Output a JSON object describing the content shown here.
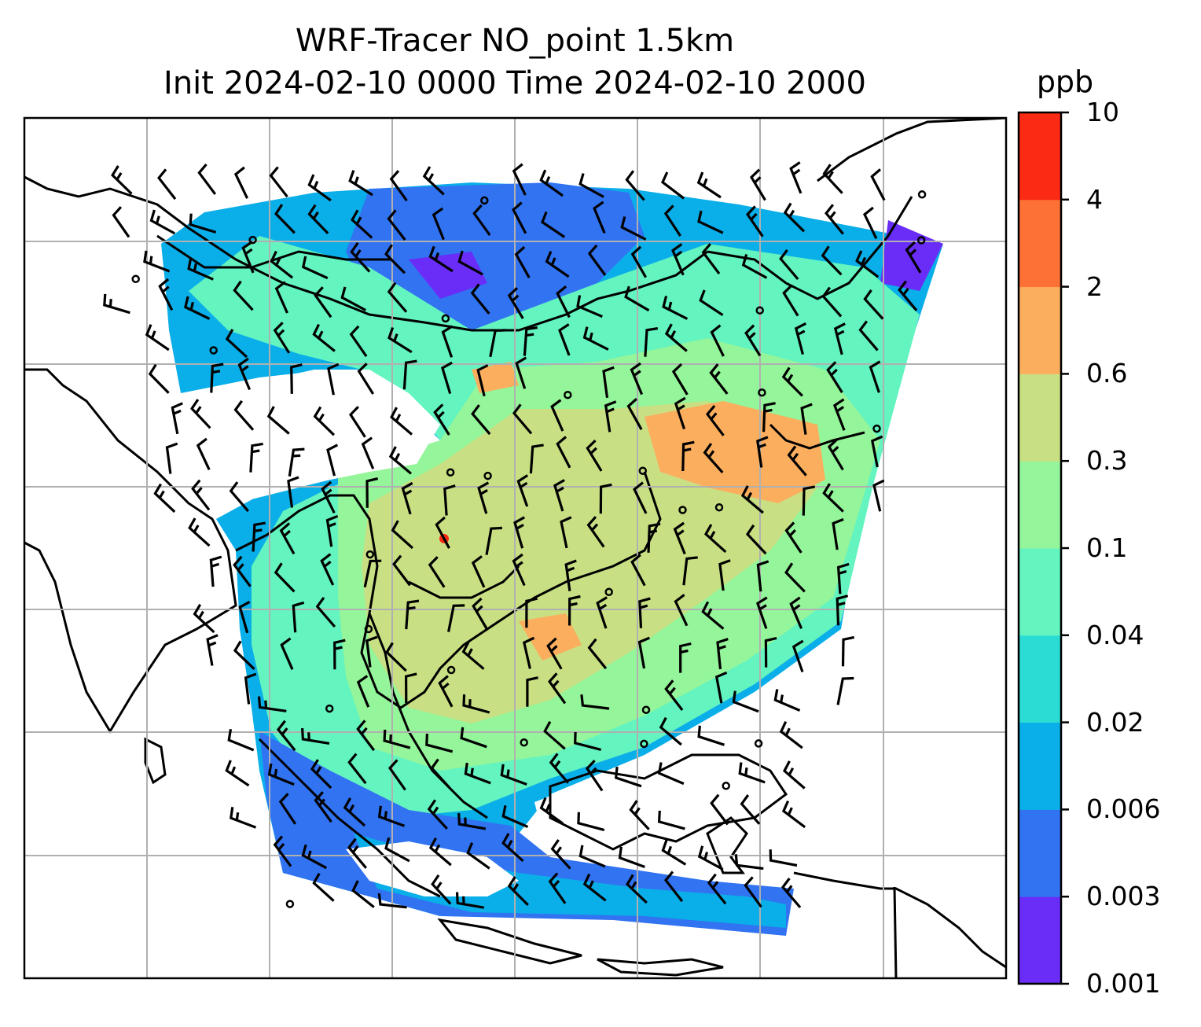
{
  "title": {
    "line1": "WRF-Tracer NO_point 1.5km",
    "line2": "Init 2024-02-10 0000 Time 2024-02-10 2000"
  },
  "colorbar": {
    "unit": "ppb",
    "ticks": [
      "0.001",
      "0.003",
      "0.006",
      "0.02",
      "0.04",
      "0.1",
      "0.3",
      "0.6",
      "2",
      "4",
      "10"
    ],
    "colors": [
      "#6a2cf7",
      "#3273f2",
      "#0aaee8",
      "#2bdcd4",
      "#63f4c0",
      "#95f59a",
      "#c8e083",
      "#fbae5e",
      "#fd7137",
      "#fb2a14"
    ]
  },
  "map": {
    "gridlines": true,
    "wind_barbs": true,
    "coastlines": true,
    "frame_color": "#000000",
    "grid_color": "#b0b0b0"
  }
}
